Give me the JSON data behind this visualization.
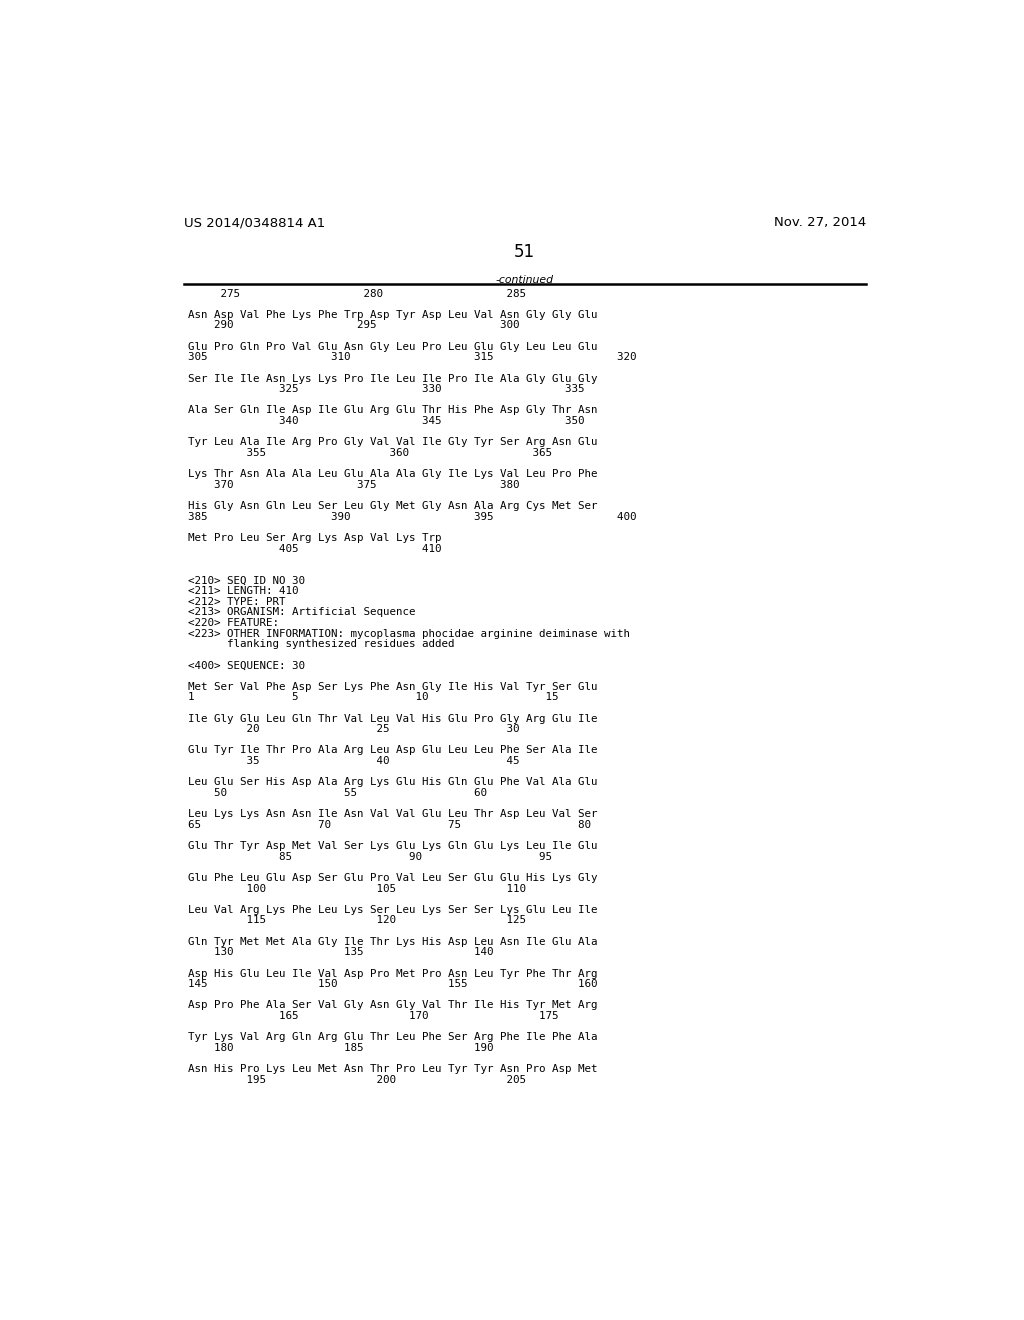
{
  "header_left": "US 2014/0348814 A1",
  "header_right": "Nov. 27, 2014",
  "page_number": "51",
  "continued_label": "-continued",
  "background_color": "#ffffff",
  "text_color": "#000000",
  "header_font_size": 9.5,
  "page_num_font_size": 12,
  "content_font_size": 7.8,
  "lines": [
    "     275                   280                   285",
    "",
    "Asn Asp Val Phe Lys Phe Trp Asp Tyr Asp Leu Val Asn Gly Gly Glu",
    "    290                   295                   300",
    "",
    "Glu Pro Gln Pro Val Glu Asn Gly Leu Pro Leu Glu Gly Leu Leu Glu",
    "305                   310                   315                   320",
    "",
    "Ser Ile Ile Asn Lys Lys Pro Ile Leu Ile Pro Ile Ala Gly Glu Gly",
    "              325                   330                   335",
    "",
    "Ala Ser Gln Ile Asp Ile Glu Arg Glu Thr His Phe Asp Gly Thr Asn",
    "              340                   345                   350",
    "",
    "Tyr Leu Ala Ile Arg Pro Gly Val Val Ile Gly Tyr Ser Arg Asn Glu",
    "         355                   360                   365",
    "",
    "Lys Thr Asn Ala Ala Leu Glu Ala Ala Gly Ile Lys Val Leu Pro Phe",
    "    370                   375                   380",
    "",
    "His Gly Asn Gln Leu Ser Leu Gly Met Gly Asn Ala Arg Cys Met Ser",
    "385                   390                   395                   400",
    "",
    "Met Pro Leu Ser Arg Lys Asp Val Lys Trp",
    "              405                   410",
    "",
    "",
    "<210> SEQ ID NO 30",
    "<211> LENGTH: 410",
    "<212> TYPE: PRT",
    "<213> ORGANISM: Artificial Sequence",
    "<220> FEATURE:",
    "<223> OTHER INFORMATION: mycoplasma phocidae arginine deiminase with",
    "      flanking synthesized residues added",
    "",
    "<400> SEQUENCE: 30",
    "",
    "Met Ser Val Phe Asp Ser Lys Phe Asn Gly Ile His Val Tyr Ser Glu",
    "1               5                  10                  15",
    "",
    "Ile Gly Glu Leu Gln Thr Val Leu Val His Glu Pro Gly Arg Glu Ile",
    "         20                  25                  30",
    "",
    "Glu Tyr Ile Thr Pro Ala Arg Leu Asp Glu Leu Leu Phe Ser Ala Ile",
    "         35                  40                  45",
    "",
    "Leu Glu Ser His Asp Ala Arg Lys Glu His Gln Glu Phe Val Ala Glu",
    "    50                  55                  60",
    "",
    "Leu Lys Lys Asn Asn Ile Asn Val Val Glu Leu Thr Asp Leu Val Ser",
    "65                  70                  75                  80",
    "",
    "Glu Thr Tyr Asp Met Val Ser Lys Glu Lys Gln Glu Lys Leu Ile Glu",
    "              85                  90                  95",
    "",
    "Glu Phe Leu Glu Asp Ser Glu Pro Val Leu Ser Glu Glu His Lys Gly",
    "         100                 105                 110",
    "",
    "Leu Val Arg Lys Phe Leu Lys Ser Leu Lys Ser Ser Lys Glu Leu Ile",
    "         115                 120                 125",
    "",
    "Gln Tyr Met Met Ala Gly Ile Thr Lys His Asp Leu Asn Ile Glu Ala",
    "    130                 135                 140",
    "",
    "Asp His Glu Leu Ile Val Asp Pro Met Pro Asn Leu Tyr Phe Thr Arg",
    "145                 150                 155                 160",
    "",
    "Asp Pro Phe Ala Ser Val Gly Asn Gly Val Thr Ile His Tyr Met Arg",
    "              165                 170                 175",
    "",
    "Tyr Lys Val Arg Gln Arg Glu Thr Leu Phe Ser Arg Phe Ile Phe Ala",
    "    180                 185                 190",
    "",
    "Asn His Pro Lys Leu Met Asn Thr Pro Leu Tyr Tyr Asn Pro Asp Met",
    "         195                 200                 205"
  ]
}
